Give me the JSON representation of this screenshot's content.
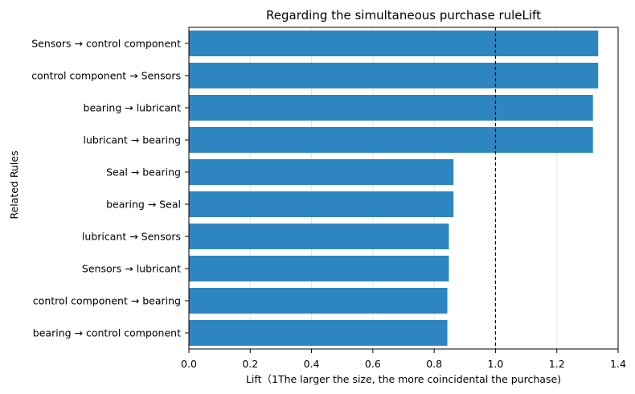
{
  "chart_data": {
    "type": "bar",
    "orientation": "horizontal",
    "title": "Regarding the simultaneous purchase ruleLift",
    "xlabel": "Lift（1The larger the size, the more coincidental the purchase)",
    "ylabel": "Related Rules",
    "categories": [
      "Sensors → control component",
      "control component → Sensors",
      "bearing → lubricant",
      "lubricant → bearing",
      "Seal → bearing",
      "bearing → Seal",
      "lubricant → Sensors",
      "Sensors → lubricant",
      "control component → bearing",
      "bearing → control component"
    ],
    "values": [
      1.335,
      1.335,
      1.318,
      1.318,
      0.863,
      0.863,
      0.848,
      0.848,
      0.843,
      0.843
    ],
    "xlim": [
      0,
      1.4
    ],
    "xticks": [
      0.0,
      0.2,
      0.4,
      0.6,
      0.8,
      1.0,
      1.2,
      1.4
    ],
    "xtick_labels": [
      "0.0",
      "0.2",
      "0.4",
      "0.6",
      "0.8",
      "1.0",
      "1.2",
      "1.4"
    ],
    "reference_line": {
      "x": 1.0,
      "style": "dashed",
      "color": "#000000"
    },
    "bar_color": "#2e86c1",
    "grid": {
      "x": true,
      "y": false
    }
  }
}
